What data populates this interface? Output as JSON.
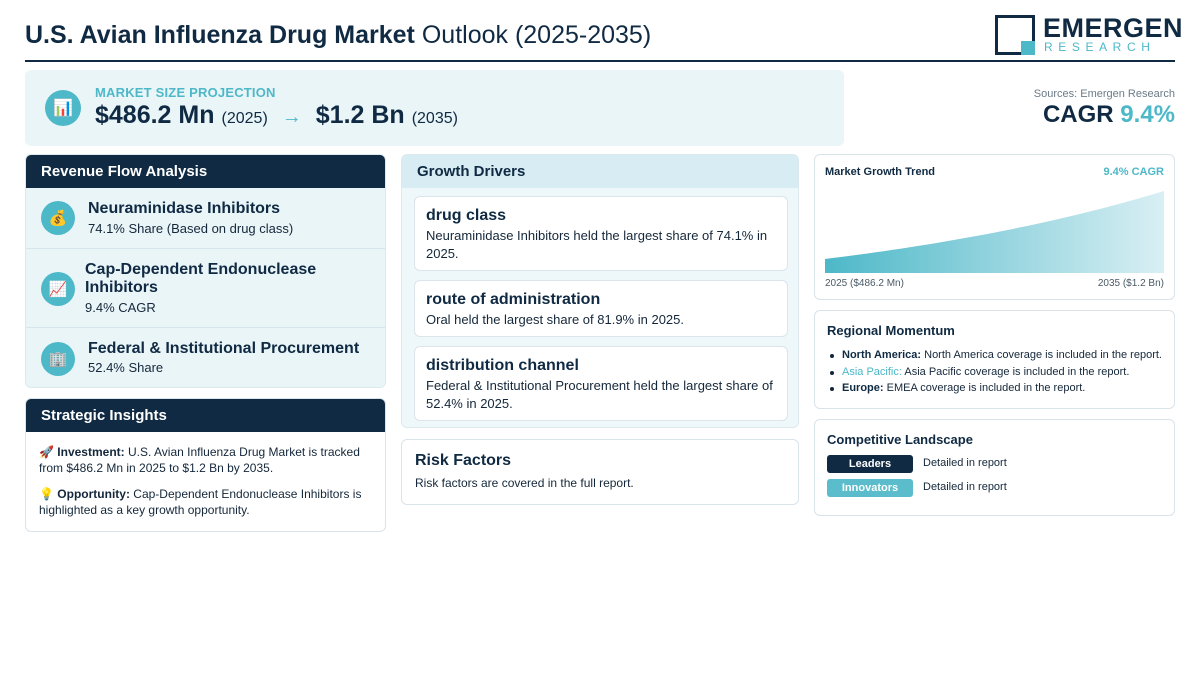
{
  "header": {
    "title_bold": "U.S. Avian Influenza Drug Market",
    "title_rest": "Outlook (2025-2035)",
    "logo_name": "EMERGEN",
    "logo_sub": "RESEARCH"
  },
  "banner": {
    "icon": "bar-chart-icon",
    "label": "MARKET SIZE PROJECTION",
    "start_value": "$486.2 Mn",
    "start_year": "(2025)",
    "arrow": "→",
    "end_value": "$1.2 Bn",
    "end_year": "(2035)"
  },
  "cagr_box": {
    "sources": "Sources: Emergen Research",
    "cagr_label": "CAGR",
    "cagr_value": "9.4%"
  },
  "revenue_flow": {
    "title": "Revenue Flow Analysis",
    "items": [
      {
        "icon": "money-bag-icon",
        "glyph": "💰",
        "title": "Neuraminidase Inhibitors",
        "sub": "74.1% Share (Based on drug class)"
      },
      {
        "icon": "chart-up-icon",
        "glyph": "📈",
        "title": "Cap-Dependent Endonuclease Inhibitors",
        "sub": "9.4% CAGR"
      },
      {
        "icon": "building-icon",
        "glyph": "🏢",
        "title": "Federal & Institutional Procurement",
        "sub": "52.4% Share"
      }
    ]
  },
  "insights": {
    "title": "Strategic Insights",
    "items": [
      {
        "glyph": "🚀",
        "label": "Investment:",
        "text": "U.S. Avian Influenza Drug Market is tracked from $486.2 Mn in 2025 to $1.2 Bn by 2035."
      },
      {
        "glyph": "💡",
        "label": "Opportunity:",
        "text": "Cap-Dependent Endonuclease Inhibitors is highlighted as a key growth opportunity."
      }
    ]
  },
  "drivers": {
    "title": "Growth Drivers",
    "items": [
      {
        "title": "drug class",
        "text": "Neuraminidase Inhibitors held the largest share of 74.1% in 2025."
      },
      {
        "title": "route of administration",
        "text": "Oral held the largest share of 81.9% in 2025."
      },
      {
        "title": "distribution channel",
        "text": "Federal & Institutional Procurement held the largest share of 52.4% in 2025."
      }
    ]
  },
  "risk": {
    "title": "Risk Factors",
    "text": "Risk factors are covered in the full report."
  },
  "trend": {
    "title": "Market Growth Trend",
    "cagr": "9.4% CAGR",
    "label_left": "2025 ($486.2 Mn)",
    "label_right": "2035 ($1.2 Bn)"
  },
  "chart_data": {
    "type": "area",
    "title": "Market Growth Trend",
    "x": [
      2025,
      2035
    ],
    "series": [
      {
        "values": [
          486.2,
          1200
        ]
      }
    ],
    "colors": {
      "top": "#d9eff4",
      "bottom": "#4db8c8"
    }
  },
  "regional": {
    "title": "Regional Momentum",
    "items": [
      {
        "name": "North America:",
        "text": "North America coverage is included in the report."
      },
      {
        "name": "Asia Pacific:",
        "text": "Asia Pacific coverage is included in the report."
      },
      {
        "name": "Europe:",
        "text": "EMEA coverage is included in the report."
      }
    ]
  },
  "competitive": {
    "title": "Competitive Landscape",
    "rows": [
      {
        "badge": "Leaders",
        "text": "Detailed in report"
      },
      {
        "badge": "Innovators",
        "text": "Detailed in report"
      }
    ]
  },
  "colors": {
    "navy": "#0f2a42",
    "teal": "#4db8c8",
    "panel": "#eaf5f8"
  }
}
